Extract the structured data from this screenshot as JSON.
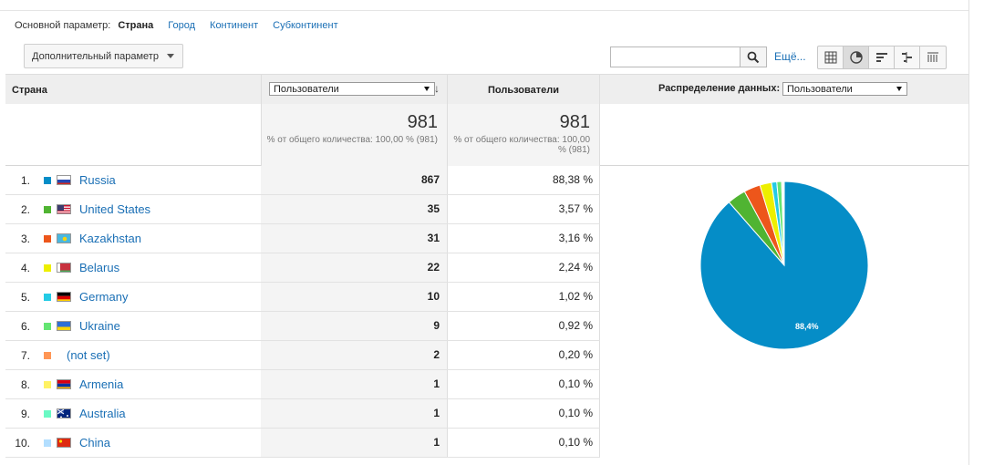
{
  "dimensions": {
    "label": "Основной параметр:",
    "active": "Страна",
    "links": [
      "Город",
      "Континент",
      "Субконтинент"
    ]
  },
  "secondary_dimension": {
    "label": "Дополнительный параметр"
  },
  "search": {
    "value": "",
    "placeholder": ""
  },
  "more_link": "Ещё...",
  "view_buttons": [
    "table-view-icon",
    "pie-view-icon",
    "performance-view-icon",
    "comparison-view-icon",
    "pivot-view-icon"
  ],
  "table": {
    "header_country": "Страна",
    "metric_select": "Пользователи",
    "header_users": "Пользователи",
    "distribution_label": "Распределение данных:",
    "distribution_select": "Пользователи",
    "totals": {
      "value1": "981",
      "sub1": "% от общего количества: 100,00 % (981)",
      "value2": "981",
      "sub2": "% от общего количества: 100,00 % (981)"
    },
    "rows": [
      {
        "num": "1.",
        "country": "Russia",
        "users": "867",
        "pct": "88,38 %",
        "color": "#058dc7",
        "flag": "ru"
      },
      {
        "num": "2.",
        "country": "United States",
        "users": "35",
        "pct": "3,57 %",
        "color": "#50b432",
        "flag": "us"
      },
      {
        "num": "3.",
        "country": "Kazakhstan",
        "users": "31",
        "pct": "3,16 %",
        "color": "#ed561b",
        "flag": "kz"
      },
      {
        "num": "4.",
        "country": "Belarus",
        "users": "22",
        "pct": "2,24 %",
        "color": "#edef00",
        "flag": "by"
      },
      {
        "num": "5.",
        "country": "Germany",
        "users": "10",
        "pct": "1,02 %",
        "color": "#24cbe5",
        "flag": "de"
      },
      {
        "num": "6.",
        "country": "Ukraine",
        "users": "9",
        "pct": "0,92 %",
        "color": "#64e572",
        "flag": "ua"
      },
      {
        "num": "7.",
        "country": "(not set)",
        "users": "2",
        "pct": "0,20 %",
        "color": "#ff9655",
        "flag": ""
      },
      {
        "num": "8.",
        "country": "Armenia",
        "users": "1",
        "pct": "0,10 %",
        "color": "#fff263",
        "flag": "am"
      },
      {
        "num": "9.",
        "country": "Australia",
        "users": "1",
        "pct": "0,10 %",
        "color": "#6af9c4",
        "flag": "au"
      },
      {
        "num": "10.",
        "country": "China",
        "users": "1",
        "pct": "0,10 %",
        "color": "#b2deff",
        "flag": "cn"
      }
    ]
  },
  "chart_data": {
    "type": "pie",
    "categories": [
      "Russia",
      "United States",
      "Kazakhstan",
      "Belarus",
      "Germany",
      "Ukraine",
      "(not set)",
      "Armenia",
      "Australia",
      "China"
    ],
    "values": [
      867,
      35,
      31,
      22,
      10,
      9,
      2,
      1,
      1,
      1
    ],
    "colors": [
      "#058dc7",
      "#50b432",
      "#ed561b",
      "#edef00",
      "#24cbe5",
      "#64e572",
      "#ff9655",
      "#fff263",
      "#6af9c4",
      "#b2deff"
    ],
    "slice_label": "88,4%"
  }
}
